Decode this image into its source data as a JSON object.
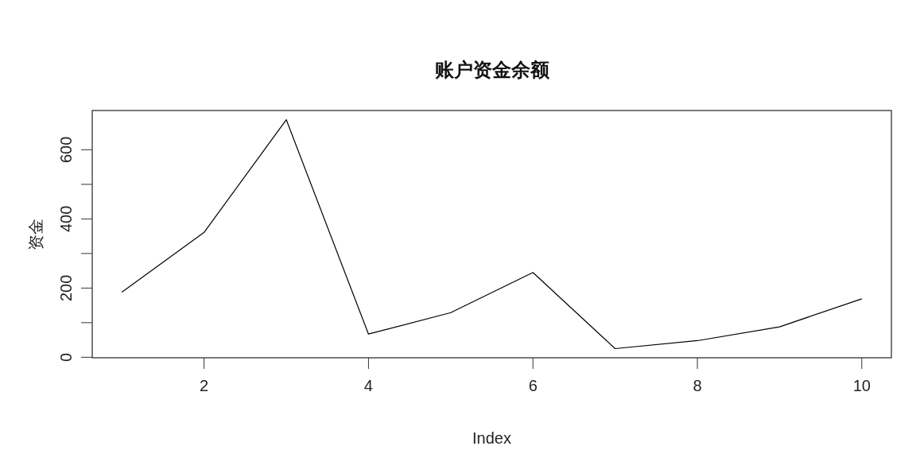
{
  "chart_data": {
    "type": "line",
    "title": "账户资金余额",
    "xlabel": "Index",
    "ylabel": "资金",
    "x": [
      1,
      2,
      3,
      4,
      5,
      6,
      7,
      8,
      9,
      10
    ],
    "series": [
      {
        "color": "#000000",
        "values": [
          188,
          361,
          687,
          67,
          129,
          245,
          25,
          48,
          88,
          169
        ]
      }
    ],
    "xlim": [
      0.64,
      10.36
    ],
    "ylim": [
      -1.5,
      713.5
    ],
    "xticks": [
      2,
      4,
      6,
      8,
      10
    ],
    "yticks": [
      0,
      {
        "value": 100,
        "label": null
      },
      200,
      {
        "value": 300,
        "label": null
      },
      400,
      {
        "value": 500,
        "label": null
      },
      600
    ],
    "grid": false,
    "marker": "none",
    "line_style": "solid"
  }
}
